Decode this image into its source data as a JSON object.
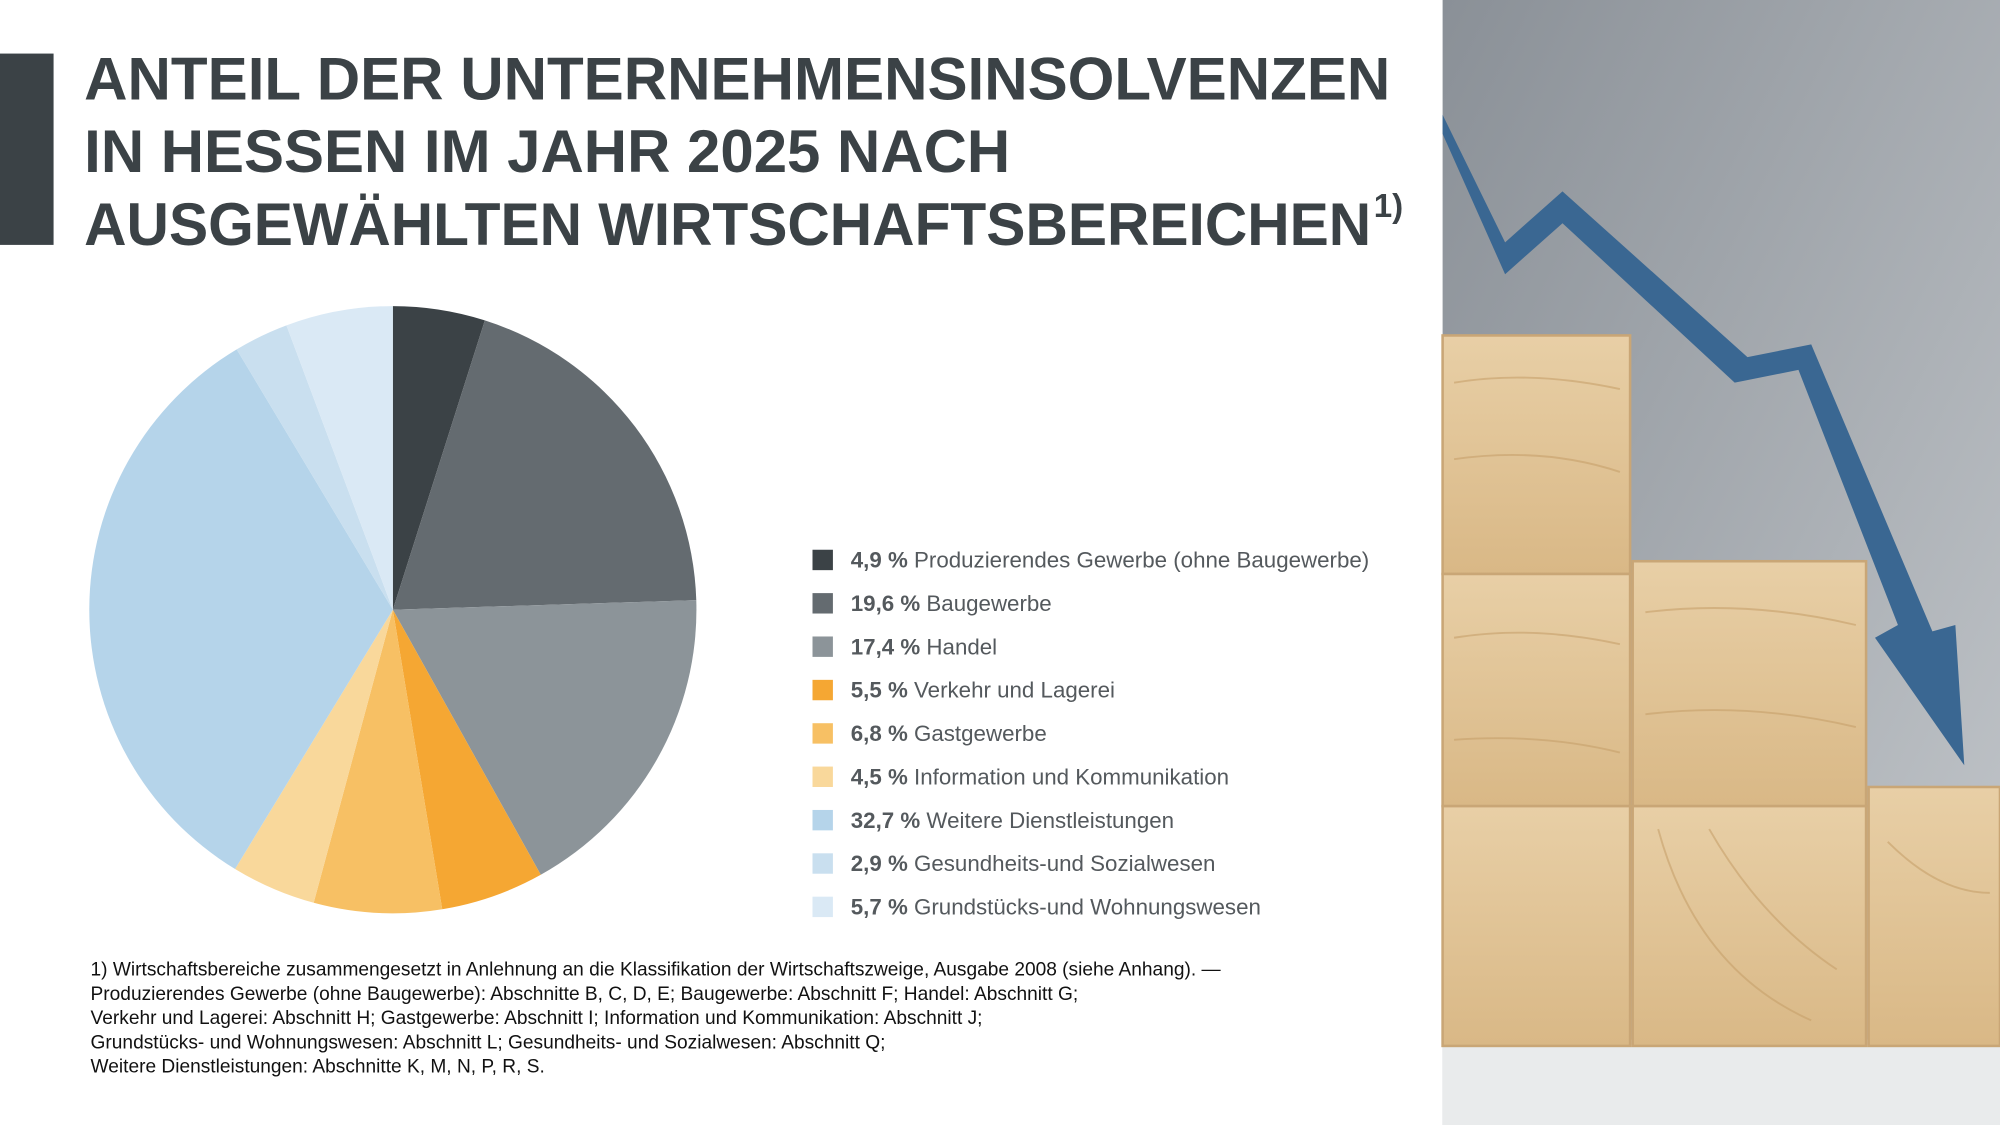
{
  "chart_data": {
    "type": "pie",
    "title_lines": [
      "ANTEIL DER UNTERNEHMENSINSOLVENZEN",
      "IN HESSEN IM JAHR 2025 NACH",
      "AUSGEWÄHLTEN WIRTSCHAFTSBEREICHEN"
    ],
    "title_note": "1)",
    "categories": [
      "Produzierendes Gewerbe (ohne Baugewerbe)",
      "Baugewerbe",
      "Handel",
      "Verkehr und Lagerei",
      "Gastgewerbe",
      "Information und Kommunikation",
      "Weitere Dienstleistungen",
      "Gesundheits-und Sozialwesen",
      "Grundstücks-und Wohnungswesen"
    ],
    "values": [
      4.9,
      19.6,
      17.4,
      5.5,
      6.8,
      4.5,
      32.7,
      2.9,
      5.7
    ],
    "value_labels": [
      "4,9 %",
      "19,6 %",
      "17,4 %",
      "5,5 %",
      "6,8 %",
      "4,5 %",
      "32,7 %",
      "2,9 %",
      "5,7 %"
    ],
    "colors": [
      "#3b4246",
      "#646b70",
      "#8c9499",
      "#f5a733",
      "#f7c064",
      "#f9d89b",
      "#b5d4ea",
      "#c9dfef",
      "#dae9f5"
    ],
    "footnote_lines": [
      "1) Wirtschaftsbereiche zusammengesetzt in Anlehnung an die Klassifikation der Wirtschaftszweige, Ausgabe 2008 (siehe Anhang). —",
      "Produzierendes Gewerbe (ohne Baugewerbe): Abschnitte B, C, D, E; Baugewerbe: Abschnitt F; Handel: Abschnitt G;",
      "Verkehr und Lagerei: Abschnitt H; Gastgewerbe: Abschnitt I; Information und Kommunikation: Abschnitt J;",
      "Grundstücks- und Wohnungswesen: Abschnitt L; Gesundheits- und Sozialwesen: Abschnitt Q;",
      "Weitere Dienstleistungen: Abschnitte K, M, N, P, R, S."
    ]
  }
}
